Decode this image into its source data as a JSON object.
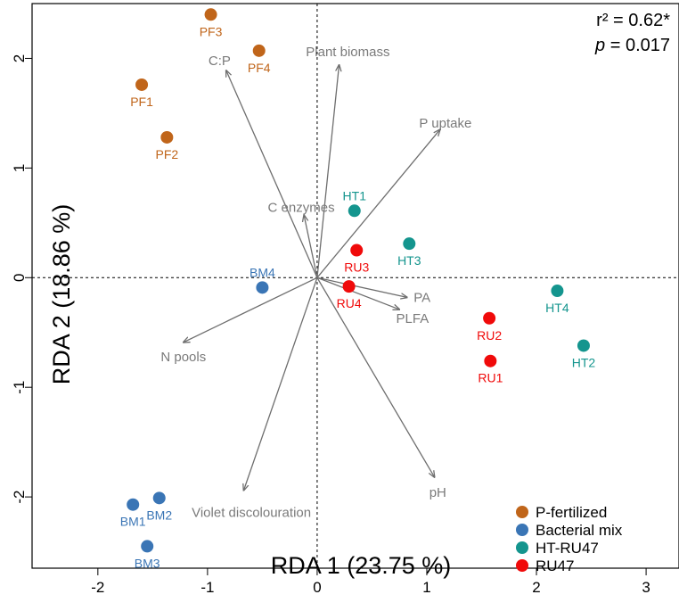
{
  "chart_data": {
    "type": "scatter",
    "xlabel": "RDA 1 (23.75 %)",
    "ylabel": "RDA 2 (18.86 %)",
    "xlim": [
      -2.6,
      3.3
    ],
    "ylim": [
      -2.65,
      2.5
    ],
    "xticks": [
      -2,
      -1,
      0,
      1,
      2,
      3
    ],
    "yticks": [
      -2,
      -1,
      0,
      1,
      2
    ],
    "stats": {
      "r2": "r² = 0.62*",
      "p_symbol": "p",
      "p_value": " = 0.017"
    },
    "groups": [
      {
        "name": "P-fertilized",
        "color": "#C0651A"
      },
      {
        "name": "Bacterial  mix",
        "color": "#3A75B5"
      },
      {
        "name": "HT-RU47",
        "color": "#14958E"
      },
      {
        "name": "RU47",
        "color": "#F00A0A"
      }
    ],
    "points": [
      {
        "label": "PF1",
        "group": 0,
        "x": -1.6,
        "y": 1.76,
        "pos": "below"
      },
      {
        "label": "PF2",
        "group": 0,
        "x": -1.37,
        "y": 1.28,
        "pos": "below"
      },
      {
        "label": "PF3",
        "group": 0,
        "x": -0.97,
        "y": 2.4,
        "pos": "below"
      },
      {
        "label": "PF4",
        "group": 0,
        "x": -0.53,
        "y": 2.07,
        "pos": "below"
      },
      {
        "label": "BM1",
        "group": 1,
        "x": -1.68,
        "y": -2.07,
        "pos": "below"
      },
      {
        "label": "BM2",
        "group": 1,
        "x": -1.44,
        "y": -2.01,
        "pos": "below"
      },
      {
        "label": "BM3",
        "group": 1,
        "x": -1.55,
        "y": -2.45,
        "pos": "below"
      },
      {
        "label": "BM4",
        "group": 1,
        "x": -0.5,
        "y": -0.09,
        "pos": "above"
      },
      {
        "label": "HT1",
        "group": 2,
        "x": 0.34,
        "y": 0.61,
        "pos": "above"
      },
      {
        "label": "HT2",
        "group": 2,
        "x": 2.43,
        "y": -0.62,
        "pos": "below"
      },
      {
        "label": "HT3",
        "group": 2,
        "x": 0.84,
        "y": 0.31,
        "pos": "below"
      },
      {
        "label": "HT4",
        "group": 2,
        "x": 2.19,
        "y": -0.12,
        "pos": "below"
      },
      {
        "label": "RU1",
        "group": 3,
        "x": 1.58,
        "y": -0.76,
        "pos": "below"
      },
      {
        "label": "RU2",
        "group": 3,
        "x": 1.57,
        "y": -0.37,
        "pos": "below"
      },
      {
        "label": "RU3",
        "group": 3,
        "x": 0.36,
        "y": 0.25,
        "pos": "below"
      },
      {
        "label": "RU4",
        "group": 3,
        "x": 0.29,
        "y": -0.08,
        "pos": "below"
      }
    ],
    "vectors": [
      {
        "label": "C:P",
        "x": -0.83,
        "y": 1.89,
        "lx": -0.89,
        "ly": 1.98,
        "anchor": "middle"
      },
      {
        "label": "Plant biomass",
        "x": 0.2,
        "y": 1.94,
        "lx": 0.28,
        "ly": 2.06,
        "anchor": "middle"
      },
      {
        "label": "P uptake",
        "x": 1.12,
        "y": 1.35,
        "lx": 0.93,
        "ly": 1.41,
        "anchor": "start"
      },
      {
        "label": "C enzymes",
        "x": -0.12,
        "y": 0.57,
        "lx": -0.45,
        "ly": 0.64,
        "anchor": "start"
      },
      {
        "label": "PA",
        "x": 0.82,
        "y": -0.18,
        "lx": 0.88,
        "ly": -0.18,
        "anchor": "start"
      },
      {
        "label": "PLFA",
        "x": 0.75,
        "y": -0.29,
        "lx": 0.72,
        "ly": -0.37,
        "anchor": "start"
      },
      {
        "label": "N pools",
        "x": -1.22,
        "y": -0.59,
        "lx": -1.22,
        "ly": -0.72,
        "anchor": "middle"
      },
      {
        "label": "pH",
        "x": 1.07,
        "y": -1.82,
        "lx": 1.1,
        "ly": -1.96,
        "anchor": "middle"
      },
      {
        "label": "Violet discolouration",
        "x": -0.67,
        "y": -1.94,
        "lx": -0.6,
        "ly": -2.14,
        "anchor": "middle"
      }
    ]
  }
}
